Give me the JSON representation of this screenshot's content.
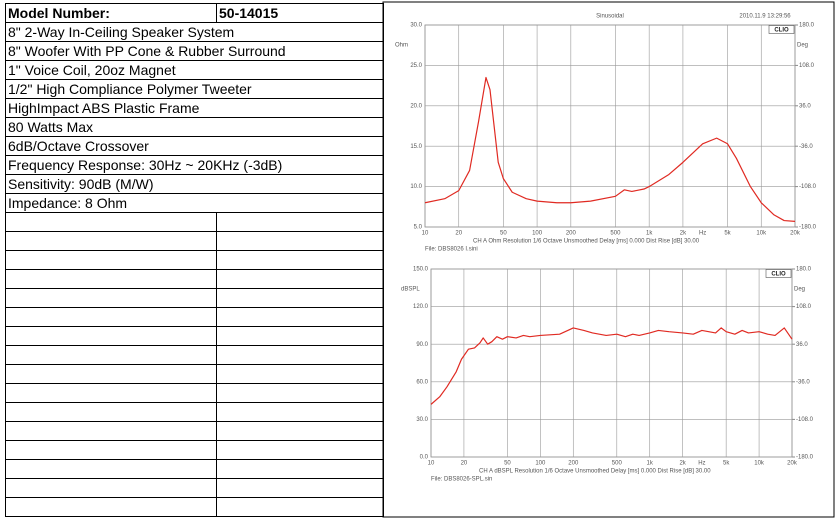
{
  "table": {
    "rows": [
      [
        "Model Number:",
        "50-14015"
      ],
      [
        "8\" 2-Way In-Ceiling Speaker System"
      ],
      [
        "8\" Woofer With PP Cone & Rubber Surround"
      ],
      [
        "1\" Voice Coil, 20oz Magnet"
      ],
      [
        "1/2\" High Compliance Polymer Tweeter"
      ],
      [
        "HighImpact ABS Plastic Frame"
      ],
      [
        "80 Watts Max"
      ],
      [
        "6dB/Octave Crossover"
      ],
      [
        "Frequency Response: 30Hz ~ 20KHz (-3dB)"
      ],
      [
        "Sensitivity: 90dB (M/W)"
      ],
      [
        "Impedance: 8 Ohm"
      ]
    ]
  },
  "chart_data": [
    {
      "type": "line",
      "log_x": true,
      "grid": true,
      "top_labels": [
        "Sinusoidal",
        "2010.11.9 13:29:56",
        "CLIO"
      ],
      "y_label": "Ohm",
      "y2_label": "Deg",
      "x_unit": "Hz",
      "footer": "CH A   Ohm   Resolution 1/6 Octave   Unsmoothed   Delay [ms] 0.000   Dist Rise [dB] 30.00",
      "file": "File: DBS8026 I.sini",
      "xlim": [
        10,
        20000
      ],
      "xticks": [
        10,
        20,
        50,
        100,
        200,
        500,
        {
          "value": 1000,
          "label": "1k"
        },
        {
          "value": 2000,
          "label": "2k"
        },
        {
          "value": 5000,
          "label": "5k"
        },
        {
          "value": 10000,
          "label": "10k"
        },
        {
          "value": 20000,
          "label": "20k"
        }
      ],
      "ylim": [
        5,
        30
      ],
      "yticks": [
        {
          "value": 5,
          "label": "5.0"
        },
        {
          "value": 10,
          "label": "10.0"
        },
        {
          "value": 15,
          "label": "15.0"
        },
        {
          "value": 20,
          "label": "20.0"
        },
        {
          "value": 25,
          "label": "25.0"
        },
        {
          "value": 30,
          "label": "30.0"
        }
      ],
      "y2lim": [
        -180,
        180
      ],
      "y2ticks": [
        {
          "value": -180,
          "label": "-180.0"
        },
        {
          "value": -108,
          "label": "-108.0"
        },
        {
          "value": -36,
          "label": "-36.0"
        },
        {
          "value": 36,
          "label": "36.0"
        },
        {
          "value": 108,
          "label": "108.0"
        },
        {
          "value": 180,
          "label": "180.0"
        }
      ],
      "x": [
        10,
        15,
        20,
        25,
        30,
        35,
        38,
        45,
        50,
        60,
        80,
        100,
        150,
        200,
        300,
        500,
        600,
        700,
        900,
        1000,
        1500,
        2000,
        3000,
        4000,
        5000,
        6000,
        8000,
        10000,
        13000,
        16000,
        20000
      ],
      "series": [
        {
          "color": "#e02a22",
          "values": [
            8.0,
            8.5,
            9.5,
            12,
            18,
            23.5,
            22,
            13,
            11,
            9.3,
            8.5,
            8.2,
            8.0,
            8.0,
            8.2,
            8.8,
            9.6,
            9.4,
            9.7,
            10.0,
            11.5,
            13,
            15.3,
            16.0,
            15.3,
            13.5,
            10,
            8,
            6.5,
            5.8,
            5.7
          ]
        }
      ]
    },
    {
      "type": "line",
      "log_x": true,
      "grid": true,
      "top_labels": [
        "CLIO"
      ],
      "y_label": "dBSPL",
      "y2_label": "Deg",
      "x_unit": "Hz",
      "footer": "CH A   dBSPL   Resolution 1/6 Octave   Unsmoothed   Delay [ms] 0.000   Dist Rise [dB] 30.00",
      "file": "File: DBS8026-SPL.sin",
      "xlim": [
        10,
        20000
      ],
      "xticks": [
        10,
        20,
        50,
        100,
        200,
        500,
        {
          "value": 1000,
          "label": "1k"
        },
        {
          "value": 2000,
          "label": "2k"
        },
        {
          "value": 5000,
          "label": "5k"
        },
        {
          "value": 10000,
          "label": "10k"
        },
        {
          "value": 20000,
          "label": "20k"
        }
      ],
      "ylim": [
        0,
        150
      ],
      "yticks": [
        {
          "value": 0,
          "label": "0.0"
        },
        {
          "value": 30,
          "label": "30.0"
        },
        {
          "value": 60,
          "label": "60.0"
        },
        {
          "value": 90,
          "label": "90.0"
        },
        {
          "value": 120,
          "label": "120.0"
        },
        {
          "value": 150,
          "label": "150.0"
        }
      ],
      "y2lim": [
        -180,
        180
      ],
      "y2ticks": [
        {
          "value": -180,
          "label": "-180.0"
        },
        {
          "value": -108,
          "label": "-108.0"
        },
        {
          "value": -36,
          "label": "-36.0"
        },
        {
          "value": 36,
          "label": "36.0"
        },
        {
          "value": 108,
          "label": "108.0"
        },
        {
          "value": 180,
          "label": "180.0"
        }
      ],
      "x": [
        10,
        12,
        14,
        17,
        19,
        22,
        25,
        28,
        30,
        33,
        36,
        40,
        45,
        50,
        60,
        70,
        80,
        100,
        150,
        200,
        250,
        300,
        400,
        500,
        600,
        700,
        800,
        1000,
        1200,
        1500,
        2000,
        2500,
        3000,
        4000,
        4500,
        5000,
        6000,
        7000,
        8000,
        10000,
        12000,
        14000,
        17000,
        20000
      ],
      "series": [
        {
          "color": "#e02a22",
          "values": [
            42,
            48,
            56,
            68,
            78,
            86,
            87,
            91,
            95,
            90,
            92,
            96,
            94,
            96,
            95,
            97,
            96,
            97,
            98,
            103,
            101,
            99,
            97,
            98,
            96,
            98,
            97,
            99,
            101,
            100,
            99,
            98,
            101,
            99,
            103,
            100,
            98,
            101,
            99,
            100,
            98,
            97,
            103,
            94
          ]
        }
      ]
    }
  ]
}
